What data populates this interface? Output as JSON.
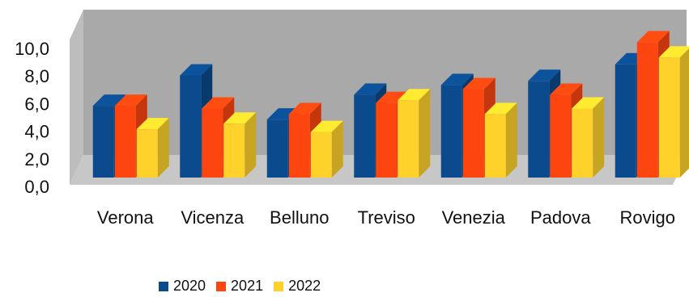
{
  "chart_data": {
    "type": "bar",
    "categories": [
      "Verona",
      "Vicenza",
      "Belluno",
      "Treviso",
      "Venezia",
      "Padova",
      "Rovigo"
    ],
    "series": [
      {
        "name": "2020",
        "color": "#0b4a8c",
        "values": [
          5.2,
          7.4,
          4.2,
          6.0,
          6.7,
          7.0,
          8.2
        ]
      },
      {
        "name": "2021",
        "color": "#fd4510",
        "values": [
          5.2,
          5.0,
          4.6,
          5.4,
          6.4,
          6.0,
          9.8
        ]
      },
      {
        "name": "2022",
        "color": "#ffd22b",
        "values": [
          3.5,
          3.9,
          3.3,
          5.6,
          4.6,
          5.0,
          8.7
        ]
      }
    ],
    "y_ticks": [
      "0,0",
      "2,0",
      "4,0",
      "6,0",
      "8,0",
      "10,0"
    ],
    "ylim": [
      0,
      10
    ],
    "legend_position": "bottom",
    "style": "3d-clustered-column",
    "grid": false
  }
}
